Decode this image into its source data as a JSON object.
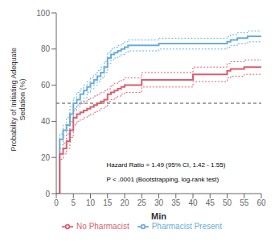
{
  "chart_data": {
    "type": "line",
    "xlabel": "Min",
    "ylabel": "Probability of Initiating Adequate\nSedation (%)",
    "xlim": [
      0,
      60
    ],
    "ylim": [
      0,
      100
    ],
    "xticks": [
      0,
      5,
      10,
      15,
      20,
      25,
      30,
      35,
      40,
      45,
      50,
      55,
      60
    ],
    "yticks": [
      0,
      20,
      40,
      60,
      80,
      100
    ],
    "grid": false,
    "legend": "bottom",
    "reference_line": 50,
    "annotations": [
      {
        "text": "Hazard Ratio = 1.49 (95% CI, 1.42 - 1.55)",
        "x": 14,
        "y": 16
      },
      {
        "text": "P < .0001 (Bootstrapping, log-rank test)",
        "x": 14,
        "y": 8
      }
    ],
    "series": [
      {
        "name": "Pharmacist Present",
        "color": "#6aadda",
        "x": [
          0,
          1,
          2,
          3,
          4,
          5,
          6,
          7,
          8,
          9,
          10,
          11,
          12,
          13,
          14,
          15,
          16,
          17,
          18,
          19,
          20,
          21,
          22,
          23,
          24,
          25,
          30,
          35,
          40,
          45,
          50,
          51,
          52,
          53,
          54,
          55,
          56,
          57,
          58,
          59,
          60
        ],
        "values": [
          0,
          30,
          35,
          38,
          44,
          50,
          52,
          55,
          57,
          59,
          61,
          63,
          65,
          67,
          70,
          75,
          77,
          78,
          79,
          80,
          81,
          82,
          82,
          82,
          82,
          82,
          83,
          83,
          83,
          83,
          84,
          85,
          85,
          86,
          86,
          86,
          87,
          87,
          87,
          87,
          87
        ],
        "upper": [
          0,
          33,
          38,
          42,
          48,
          53,
          56,
          58,
          60,
          62,
          64,
          66,
          68,
          70,
          73,
          78,
          80,
          81,
          82,
          83,
          84,
          85,
          85,
          85,
          85,
          85,
          86,
          86,
          86,
          86,
          87,
          88,
          88,
          89,
          89,
          89,
          90,
          90,
          90,
          90,
          90
        ],
        "lower": [
          0,
          27,
          32,
          35,
          40,
          47,
          49,
          51,
          53,
          56,
          58,
          60,
          62,
          64,
          67,
          72,
          74,
          75,
          76,
          77,
          78,
          79,
          79,
          79,
          79,
          79,
          80,
          80,
          80,
          80,
          81,
          82,
          82,
          83,
          83,
          83,
          84,
          84,
          84,
          84,
          84
        ]
      },
      {
        "name": "No Pharmacist",
        "color": "#d95f6e",
        "x": [
          0,
          1,
          2,
          3,
          4,
          5,
          6,
          7,
          8,
          9,
          10,
          11,
          12,
          13,
          14,
          15,
          16,
          17,
          18,
          19,
          20,
          25,
          30,
          35,
          40,
          45,
          50,
          51,
          52,
          53,
          54,
          55,
          60
        ],
        "values": [
          0,
          22,
          25,
          29,
          35,
          42,
          44,
          45,
          46,
          47,
          48,
          49,
          50,
          51,
          52,
          55,
          56,
          57,
          58,
          59,
          60,
          63,
          63,
          63,
          66,
          66,
          68,
          69,
          69,
          69,
          69,
          70,
          70
        ],
        "upper": [
          0,
          25,
          28,
          33,
          39,
          46,
          48,
          50,
          51,
          52,
          53,
          54,
          55,
          56,
          57,
          58,
          60,
          61,
          62,
          63,
          64,
          67,
          67,
          67,
          70,
          70,
          72,
          73,
          73,
          73,
          73,
          74,
          74
        ],
        "lower": [
          0,
          19,
          22,
          25,
          31,
          38,
          40,
          41,
          42,
          43,
          44,
          45,
          46,
          47,
          48,
          51,
          52,
          53,
          54,
          55,
          56,
          59,
          59,
          59,
          62,
          62,
          64,
          65,
          65,
          65,
          65,
          66,
          66
        ]
      }
    ]
  }
}
